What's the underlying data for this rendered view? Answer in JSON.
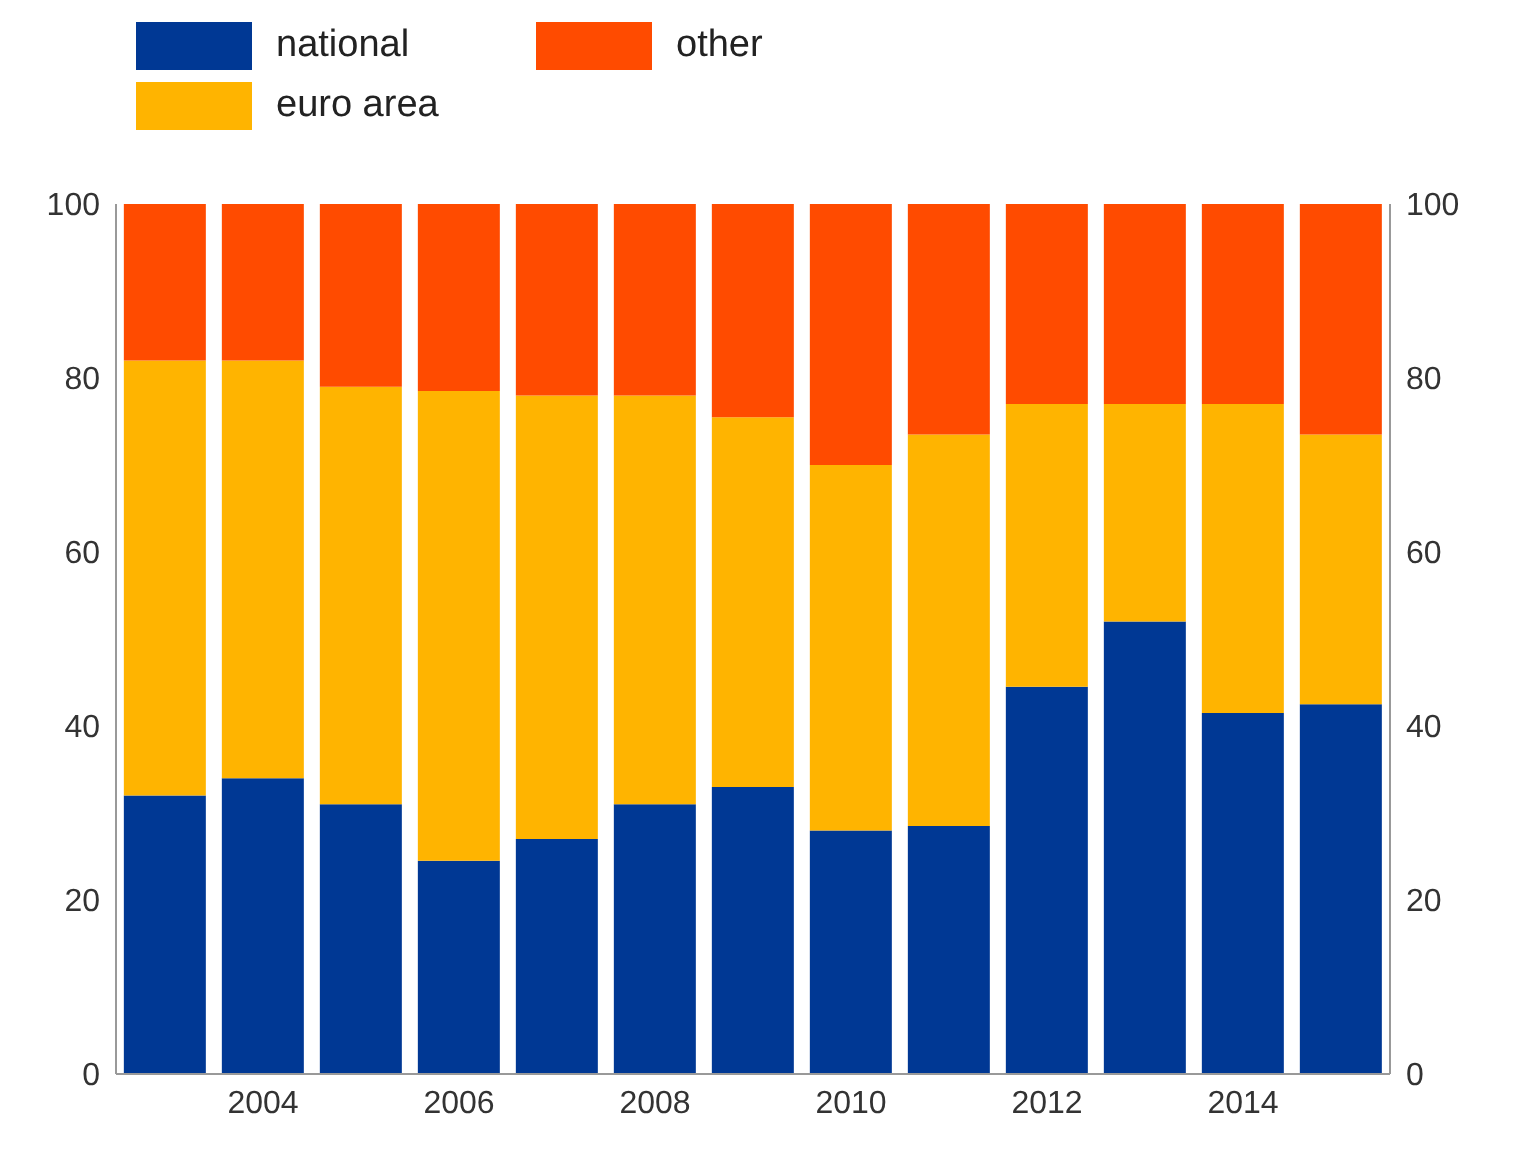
{
  "chart_data": {
    "type": "bar",
    "stacked": true,
    "categories": [
      null,
      "2004",
      null,
      "2006",
      null,
      "2008",
      null,
      "2010",
      null,
      "2012",
      null,
      "2014",
      null
    ],
    "series": [
      {
        "name": "national",
        "color": "#003894",
        "values": [
          32,
          34,
          31,
          24.5,
          27,
          31,
          33,
          28,
          28.5,
          44.5,
          52,
          41.5,
          42.5
        ]
      },
      {
        "name": "euro area",
        "color": "#ffb400",
        "values": [
          50,
          48,
          48,
          54,
          51,
          47,
          42.5,
          42,
          45,
          32.5,
          25,
          35.5,
          31
        ]
      },
      {
        "name": "other",
        "color": "#ff4b00",
        "values": [
          18,
          18,
          21,
          21.5,
          22,
          22,
          24.5,
          30,
          26.5,
          23,
          23,
          23,
          26.5
        ]
      }
    ],
    "ylim": [
      0,
      100
    ],
    "yticks": [
      0,
      20,
      40,
      60,
      80,
      100
    ],
    "y2lim": [
      0,
      100
    ],
    "y2ticks": [
      0,
      20,
      40,
      60,
      80,
      100
    ],
    "grid": false,
    "legend": "top left"
  }
}
